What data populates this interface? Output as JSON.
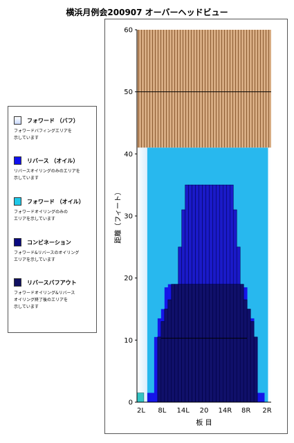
{
  "chart_data": {
    "type": "heatmap",
    "title": "横浜月例会200907 オーバーヘッドビュー",
    "xlabel": "板 目",
    "ylabel": "距離（フィート）",
    "ylim": [
      0,
      60
    ],
    "yticks": [
      "0",
      "10",
      "20",
      "30",
      "40",
      "50",
      "60"
    ],
    "x_tick_labels": [
      "2L",
      "8L",
      "14L",
      "20",
      "14R",
      "8R",
      "2R"
    ],
    "boards": 39,
    "grid": false,
    "regions": {
      "lane_wood_start_ft": 41,
      "lane_wood_color": "#cfa27a",
      "lane_grain_color": "#9a6a3c",
      "reverse_oil_profile_ft": [
        0,
        0,
        0,
        1.5,
        1.5,
        10.5,
        13.5,
        15,
        18.5,
        19,
        19,
        19,
        19,
        19,
        19,
        19,
        19,
        19,
        19,
        19,
        19,
        19,
        19,
        19,
        19,
        19,
        19,
        19,
        19,
        19,
        19,
        18.5,
        15,
        13.5,
        10.5,
        1.5,
        1.5,
        0,
        0
      ],
      "reverse_buffout_profile_ft": [
        0,
        0,
        0,
        0,
        0,
        0,
        10.5,
        13,
        15,
        16.5,
        19,
        19,
        19,
        19,
        19,
        19,
        19,
        19,
        19,
        19,
        19,
        19,
        19,
        19,
        19,
        19,
        19,
        19,
        19,
        19,
        19,
        16.5,
        15,
        13,
        10.5,
        0,
        0,
        0,
        0
      ],
      "reverse_buffout_upper_profile_ft": [
        0,
        0,
        0,
        0,
        0,
        0,
        0,
        0,
        0,
        0,
        0,
        0,
        0,
        0,
        0,
        0,
        0,
        0,
        0,
        0,
        0,
        0,
        0,
        0,
        0,
        0,
        0,
        0,
        0,
        0,
        0,
        0,
        0,
        0,
        0,
        0,
        0,
        0,
        0
      ],
      "combination_profile_ft": [
        0,
        0,
        0,
        0,
        0,
        0,
        0,
        17,
        18.5,
        18.5,
        20,
        20,
        21,
        22,
        23,
        23,
        23,
        23,
        23,
        23,
        23,
        23,
        23,
        23,
        23,
        23,
        23,
        22,
        21,
        20,
        20,
        18.5,
        18.5,
        17,
        0,
        0,
        0,
        0,
        0
      ],
      "combo_top_profile_ft": [
        0,
        0,
        0,
        0,
        0,
        0,
        0,
        0,
        0,
        0,
        0,
        0,
        25,
        31,
        35,
        35,
        35,
        35,
        35,
        35,
        35,
        35,
        35,
        35,
        35,
        35,
        35,
        35,
        31,
        25,
        0,
        0,
        0,
        0,
        0,
        0,
        0,
        0,
        0
      ],
      "forward_oil_profile_ft": [
        0,
        0,
        0,
        3,
        6,
        10,
        14,
        17,
        20,
        23,
        26,
        29,
        32,
        36,
        40,
        40,
        40,
        40,
        40,
        40,
        40,
        40,
        40,
        40,
        40,
        40,
        40,
        36,
        32,
        29,
        26,
        23,
        20,
        17,
        14,
        10,
        6,
        3,
        0
      ],
      "forward_buff_edge_ft": 41,
      "marker_lines_ft": [
        10.3,
        50
      ],
      "corner_marks": {
        "left_board": 1,
        "color": "#33c4c4"
      }
    }
  },
  "legend": {
    "items": [
      {
        "label": "フォワード （バフ）",
        "desc": "フォワードバフィングエリアを\n示しています",
        "color": "#ffffff",
        "gradient": "#c8d8ff"
      },
      {
        "label": "リバース （オイル）",
        "desc": "リバースオイリングのみのエリアを\n示しています",
        "color": "#1010ee",
        "gradient": ""
      },
      {
        "label": "フォワード （オイル）",
        "desc": "フォワードオイリングのみの\nエリアを示しています",
        "color": "#20c8e8",
        "gradient": ""
      },
      {
        "label": "コンビネーション",
        "desc": "フォワード&リバースのオイリング\nエリアを示しています",
        "color": "#0a0a80",
        "gradient": ""
      },
      {
        "label": "リバースバフアウト",
        "desc": "フォワードオイリング&リバース\nオイリング終了後のエリアを\n示しています",
        "color": "#101060",
        "gradient": ""
      }
    ]
  }
}
